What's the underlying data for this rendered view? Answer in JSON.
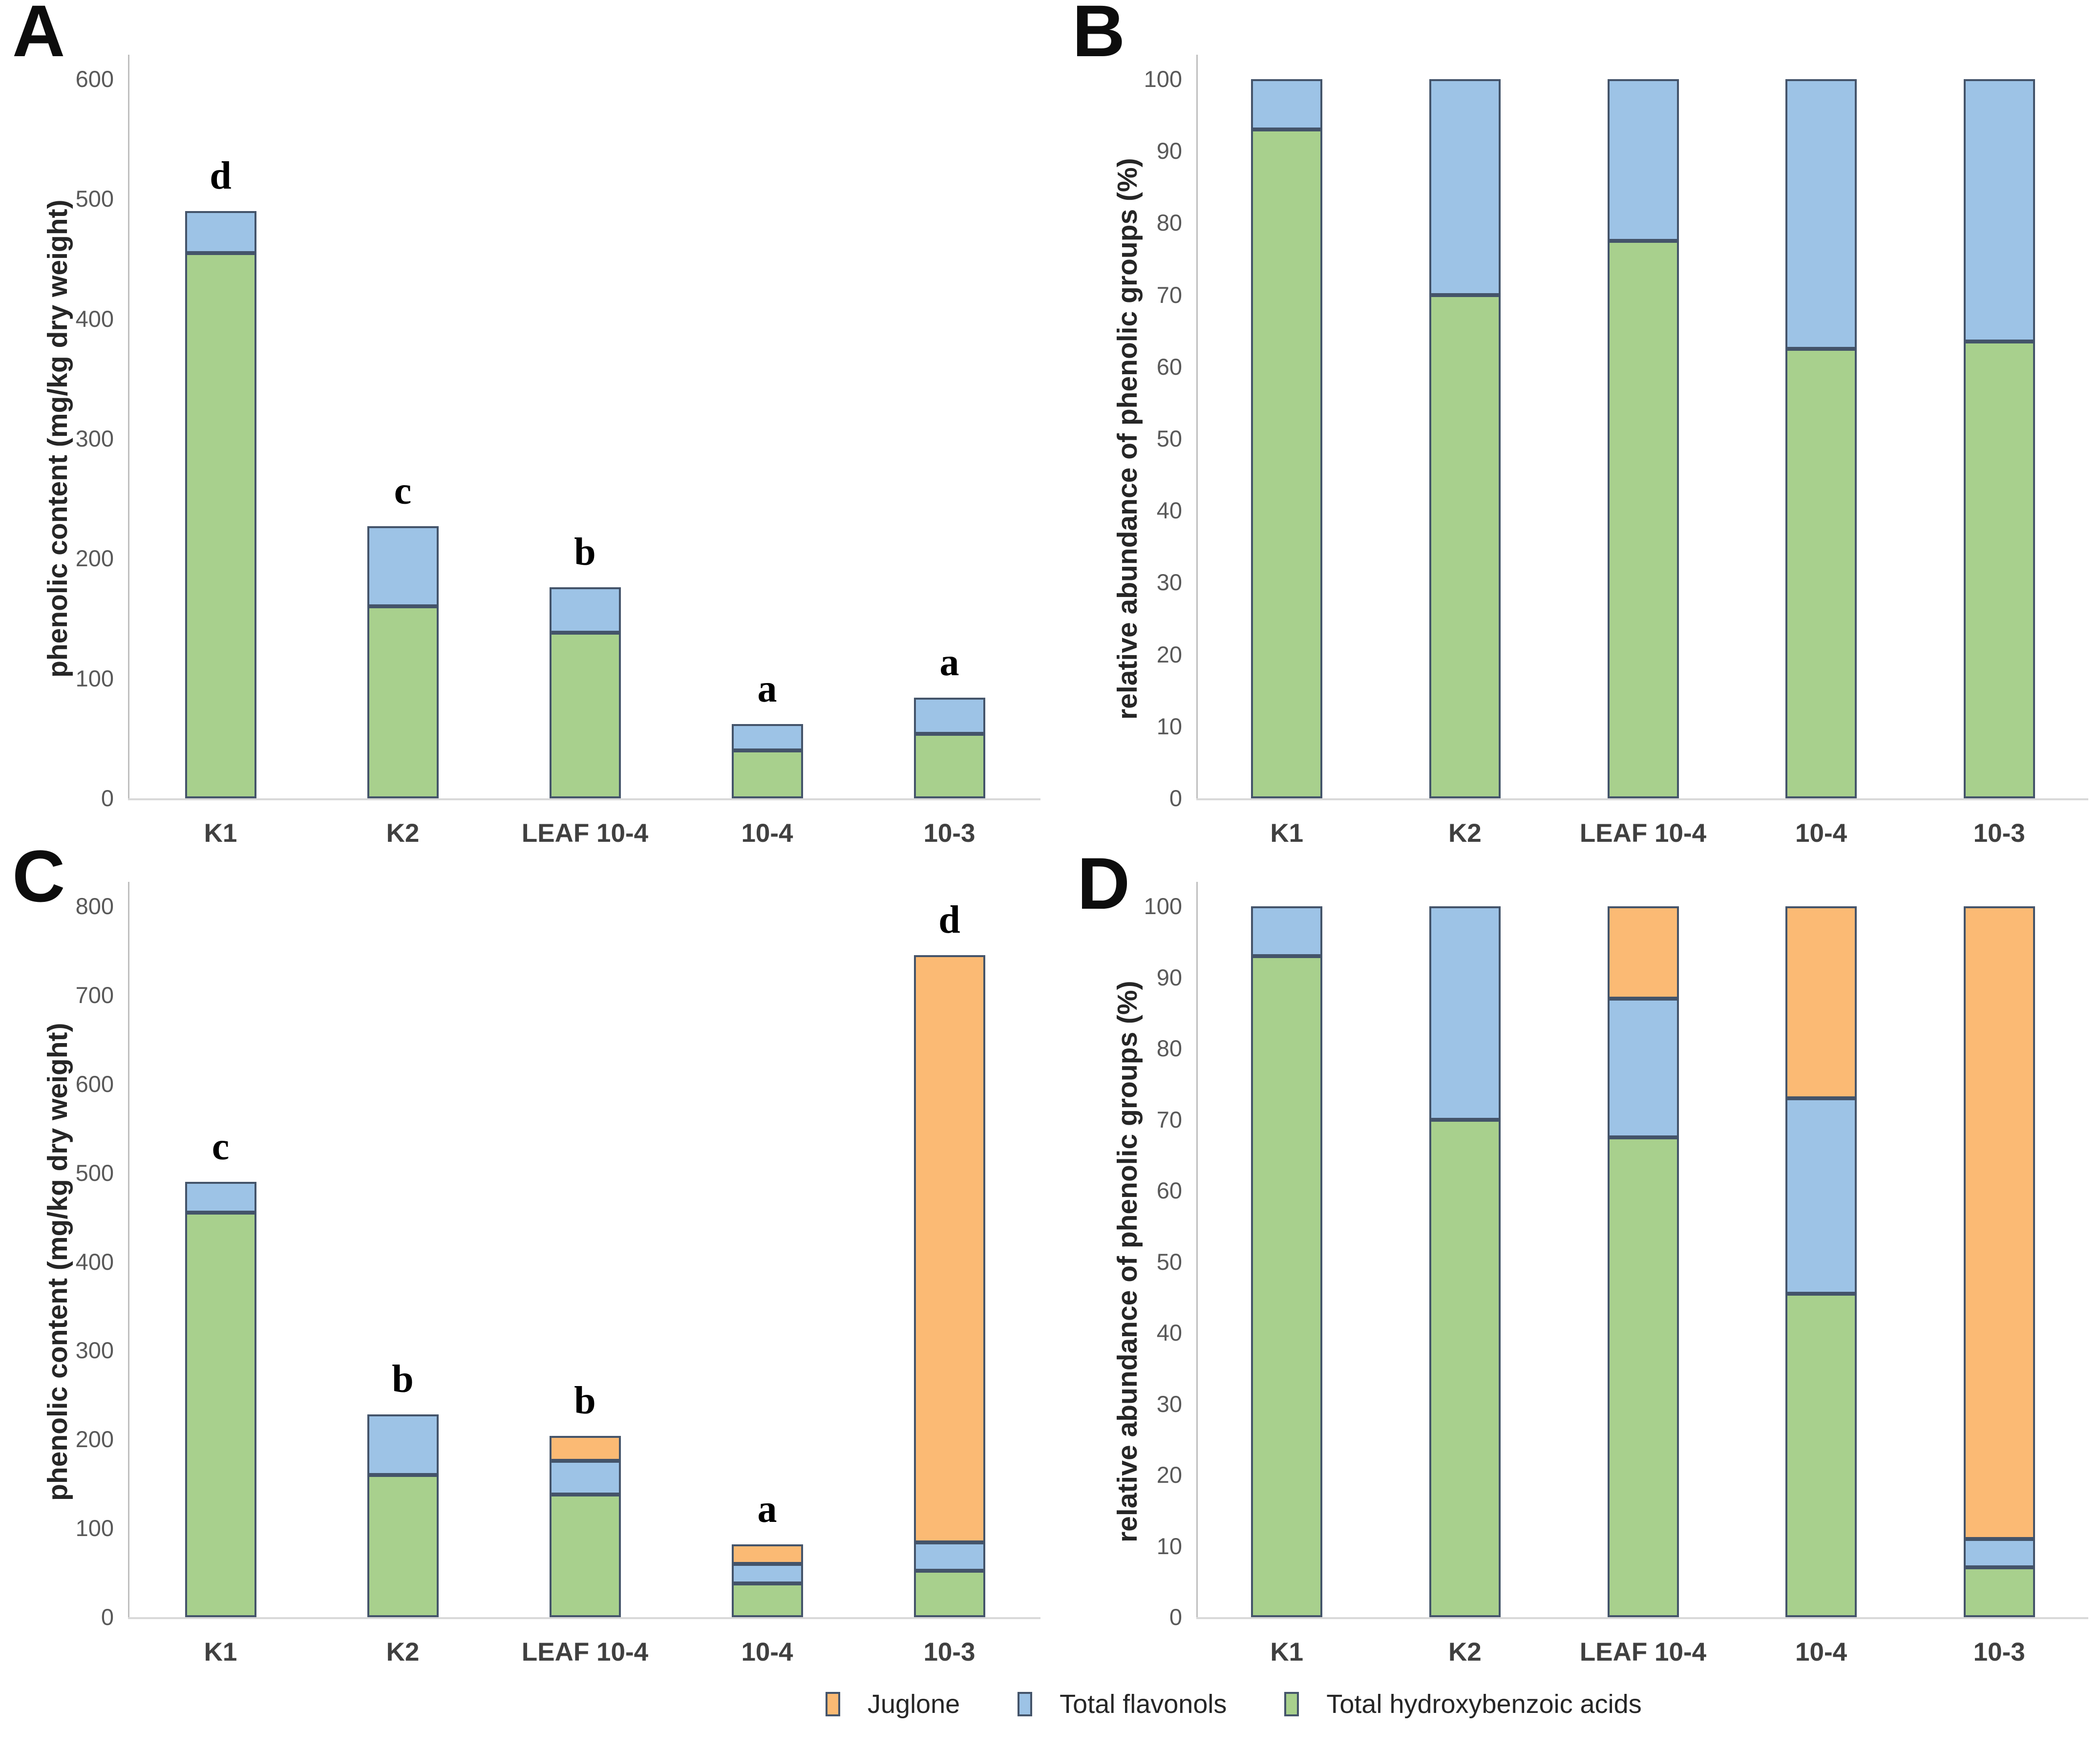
{
  "colors": {
    "green": "#A8D08D",
    "blue": "#9DC3E6",
    "orange": "#FBBA74",
    "border": "#44546A",
    "axis_line": "#BFBFBF",
    "baseline": "#D9D9D9",
    "tick_text": "#595959",
    "category_text": "#404040"
  },
  "legend": {
    "items": [
      {
        "label": "Juglone",
        "color": "orange"
      },
      {
        "label": "Total flavonols",
        "color": "blue"
      },
      {
        "label": "Total hydroxybenzoic acids",
        "color": "green"
      }
    ]
  },
  "chart_data": [
    {
      "type": "bar",
      "stacked": true,
      "panel_label": "A",
      "title": "",
      "ylabel": "phenolic content (mg/kg dry weight)",
      "ylim": [
        0,
        600
      ],
      "ytick_step": 100,
      "grid": false,
      "legend_position": "shared-bottom",
      "categories": [
        "K1",
        "K2",
        "LEAF 10-4",
        "10-4",
        "10-3"
      ],
      "series": [
        {
          "name": "Total hydroxybenzoic acids",
          "color": "green",
          "values": [
            455,
            160,
            138,
            40,
            54
          ]
        },
        {
          "name": "Total flavonols",
          "color": "blue",
          "values": [
            35,
            67,
            38,
            22,
            30
          ]
        }
      ],
      "sig_letters": [
        "d",
        "c",
        "b",
        "a",
        "a"
      ]
    },
    {
      "type": "bar",
      "stacked": true,
      "panel_label": "B",
      "title": "",
      "ylabel": "relative abundance of phenolic groups (%)",
      "ylim": [
        0,
        100
      ],
      "ytick_step": 10,
      "grid": false,
      "legend_position": "shared-bottom",
      "categories": [
        "K1",
        "K2",
        "LEAF 10-4",
        "10-4",
        "10-3"
      ],
      "series": [
        {
          "name": "Total hydroxybenzoic acids",
          "color": "green",
          "values": [
            93,
            70,
            77.5,
            62.5,
            63.5
          ]
        },
        {
          "name": "Total flavonols",
          "color": "blue",
          "values": [
            7,
            30,
            22.5,
            37.5,
            36.5
          ]
        }
      ],
      "sig_letters": null
    },
    {
      "type": "bar",
      "stacked": true,
      "panel_label": "C",
      "title": "",
      "ylabel": "phenolic content (mg/kg dry weight)",
      "ylim": [
        0,
        800
      ],
      "ytick_step": 100,
      "grid": false,
      "legend_position": "shared-bottom",
      "categories": [
        "K1",
        "K2",
        "LEAF 10-4",
        "10-4",
        "10-3"
      ],
      "series": [
        {
          "name": "Total hydroxybenzoic acids",
          "color": "green",
          "values": [
            455,
            160,
            138,
            38,
            52
          ]
        },
        {
          "name": "Total flavonols",
          "color": "blue",
          "values": [
            35,
            68,
            38,
            22,
            32
          ]
        },
        {
          "name": "Juglone",
          "color": "orange",
          "values": [
            0,
            0,
            28,
            22,
            661
          ]
        }
      ],
      "sig_letters": [
        "c",
        "b",
        "b",
        "a",
        "d"
      ]
    },
    {
      "type": "bar",
      "stacked": true,
      "panel_label": "D",
      "title": "",
      "ylabel": "relative abundance of phenolic groups (%)",
      "ylim": [
        0,
        100
      ],
      "ytick_step": 10,
      "grid": false,
      "legend_position": "shared-bottom",
      "categories": [
        "K1",
        "K2",
        "LEAF 10-4",
        "10-4",
        "10-3"
      ],
      "series": [
        {
          "name": "Total hydroxybenzoic acids",
          "color": "green",
          "values": [
            93,
            70,
            67.5,
            45.5,
            7
          ]
        },
        {
          "name": "Total flavonols",
          "color": "blue",
          "values": [
            7,
            30,
            19.5,
            27.5,
            4
          ]
        },
        {
          "name": "Juglone",
          "color": "orange",
          "values": [
            0,
            0,
            13,
            27,
            89
          ]
        }
      ],
      "sig_letters": null
    }
  ]
}
